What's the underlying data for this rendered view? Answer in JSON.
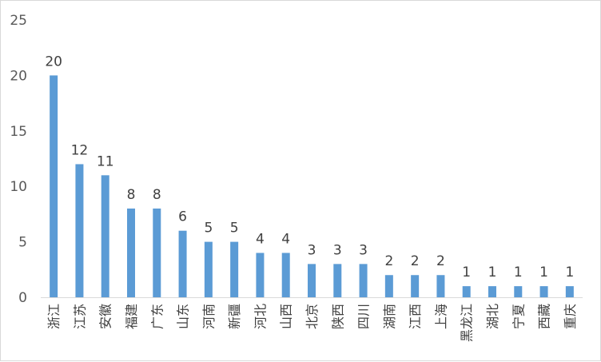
{
  "chart_data": {
    "type": "bar",
    "title": "",
    "xlabel": "",
    "ylabel": "",
    "ylim": [
      0,
      25
    ],
    "yticks": [
      0,
      5,
      10,
      15,
      20,
      25
    ],
    "grid": false,
    "legend": "none",
    "categories": [
      "浙江",
      "江苏",
      "安徽",
      "福建",
      "广东",
      "山东",
      "河南",
      "新疆",
      "河北",
      "山西",
      "北京",
      "陕西",
      "四川",
      "湖南",
      "江西",
      "上海",
      "黑龙江",
      "湖北",
      "宁夏",
      "西藏",
      "重庆"
    ],
    "values": [
      20,
      12,
      11,
      8,
      8,
      6,
      5,
      5,
      4,
      4,
      3,
      3,
      3,
      2,
      2,
      2,
      1,
      1,
      1,
      1,
      1
    ],
    "bar_color": "#5b9bd5",
    "axis_color": "#d9d9d9"
  }
}
